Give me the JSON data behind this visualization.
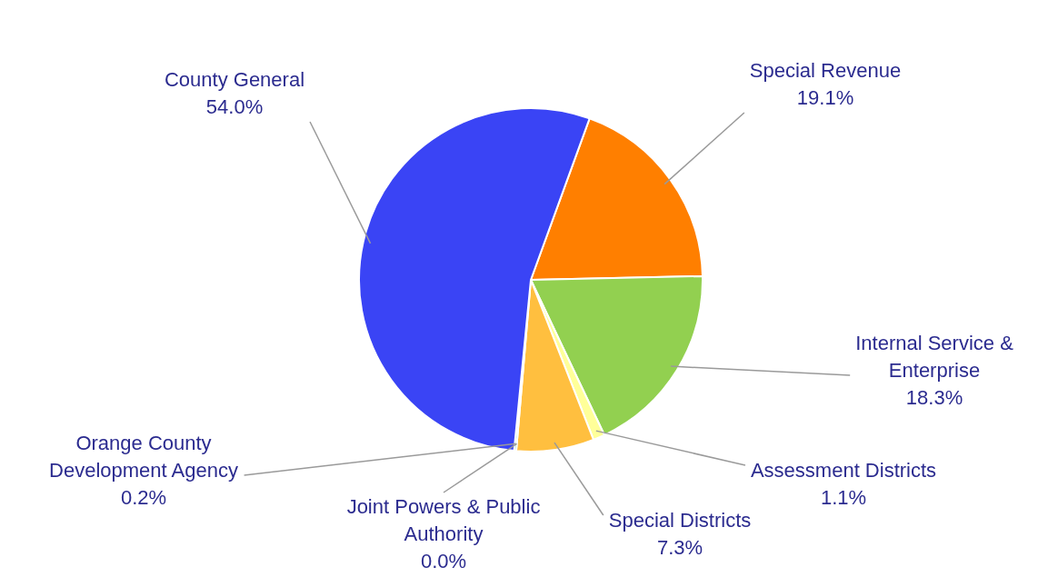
{
  "chart_data": {
    "type": "pie",
    "categories": [
      "Special Revenue",
      "Internal Service & Enterprise",
      "Assessment Districts",
      "Special Districts",
      "Joint Powers & Public Authority",
      "Orange County Development Agency",
      "County General"
    ],
    "values": [
      19.1,
      18.3,
      1.1,
      7.3,
      0.0,
      0.2,
      54.0
    ],
    "value_labels": [
      "19.1%",
      "18.3%",
      "1.1%",
      "7.3%",
      "0.0%",
      "0.2%",
      "54.0%"
    ],
    "colors": [
      "#ff7f00",
      "#92d050",
      "#ffff99",
      "#ffbf3f",
      "#ccffff",
      "#33cccc",
      "#3a44f5"
    ],
    "legend": false
  }
}
